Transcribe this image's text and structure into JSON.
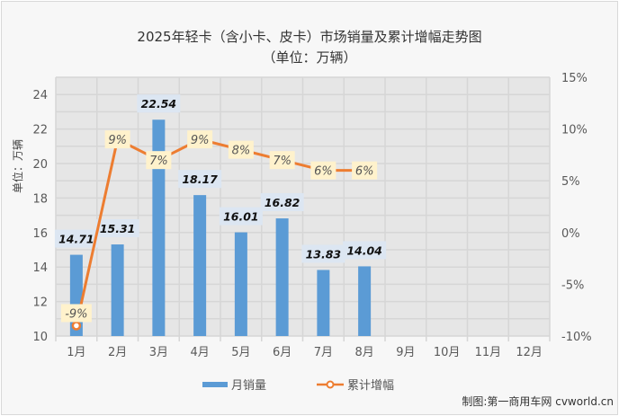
{
  "title": {
    "line1": "2025年轻卡（含小卡、皮卡）市场销量及累计增幅走势图",
    "line2": "（单位：万辆）"
  },
  "credit": "制图:第一商用车网 cvworld.cn",
  "chart_data": {
    "type": "bar+line",
    "title": "2025年轻卡（含小卡、皮卡）市场销量及累计增幅走势图（单位：万辆）",
    "categories": [
      "1月",
      "2月",
      "3月",
      "4月",
      "5月",
      "6月",
      "7月",
      "8月",
      "9月",
      "10月",
      "11月",
      "12月"
    ],
    "series": [
      {
        "name": "月销量",
        "type": "bar",
        "axis": "left",
        "color": "#5b9bd5",
        "values": [
          14.71,
          15.31,
          22.54,
          18.17,
          16.01,
          16.82,
          13.83,
          14.04,
          null,
          null,
          null,
          null
        ],
        "labels": [
          "14.71",
          "15.31",
          "22.54",
          "18.17",
          "16.01",
          "16.82",
          "13.83",
          "14.04"
        ]
      },
      {
        "name": "累计增幅",
        "type": "line",
        "axis": "right",
        "color": "#ed7d31",
        "values": [
          -9,
          9,
          7,
          9,
          8,
          7,
          6,
          6,
          null,
          null,
          null,
          null
        ],
        "labels": [
          "-9%",
          "9%",
          "7%",
          "9%",
          "8%",
          "7%",
          "6%",
          "6%"
        ]
      }
    ],
    "ylabel": "单位：万辆",
    "ylim": [
      10,
      25
    ],
    "yticks": [
      "10",
      "12",
      "14",
      "16",
      "18",
      "20",
      "22",
      "24"
    ],
    "y2lim": [
      -10,
      15
    ],
    "y2ticks": [
      "-10%",
      "-5%",
      "0%",
      "5%",
      "10%",
      "15%"
    ],
    "grid": true,
    "legend": {
      "position": "bottom",
      "entries": [
        "月销量",
        "累计增幅"
      ]
    }
  }
}
